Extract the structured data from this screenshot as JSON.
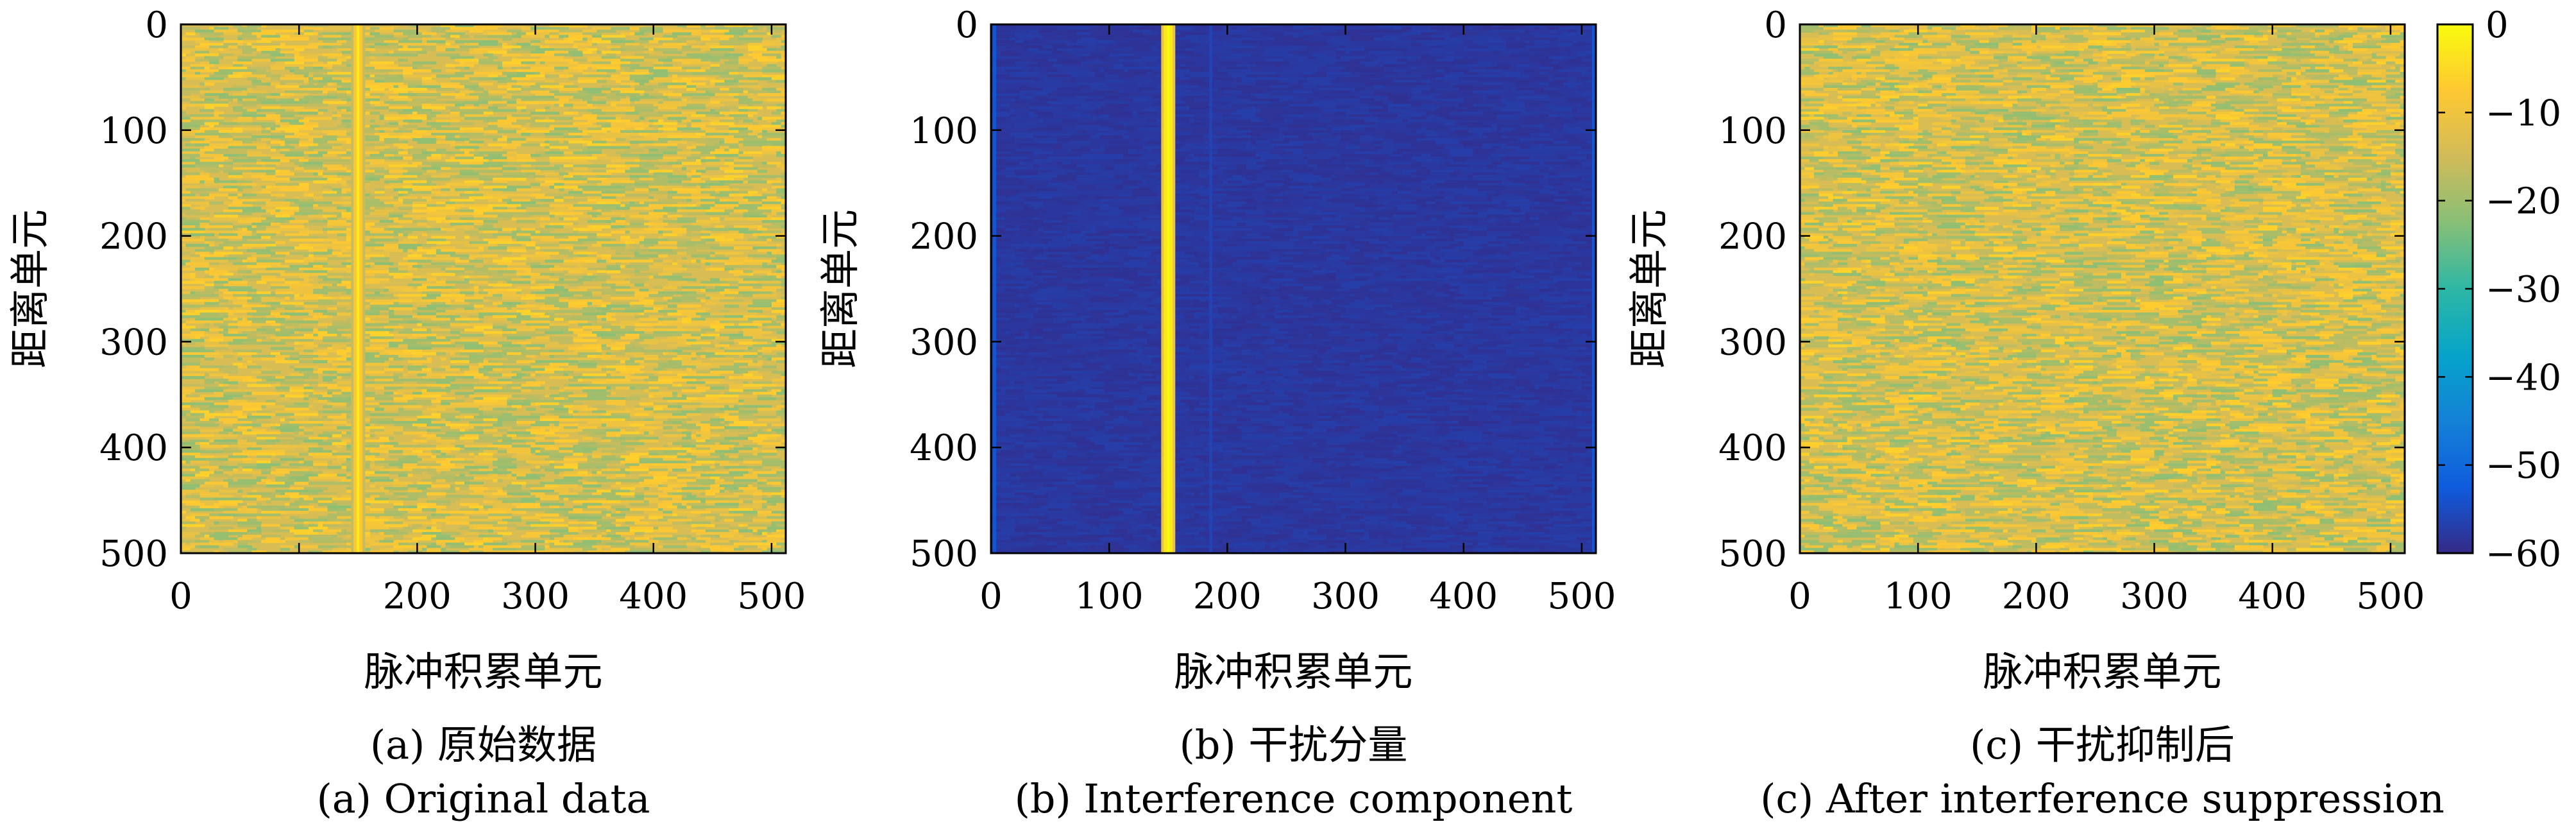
{
  "chart_data": [
    {
      "type": "heatmap",
      "caption_zh": "(a) 原始数据",
      "caption_en": "(a) Original data",
      "xlabel": "脉冲积累单元",
      "ylabel": "距离单元",
      "xlim": [
        0,
        512
      ],
      "ylim": [
        0,
        500
      ],
      "y_inverted": true,
      "xticks": [
        0,
        100,
        200,
        300,
        400,
        500
      ],
      "xtick_labels": [
        "0",
        "",
        "200",
        "300",
        "400",
        "500"
      ],
      "yticks": [
        0,
        100,
        200,
        300,
        400,
        500
      ],
      "ytick_labels": [
        "0",
        "100",
        "200",
        "300",
        "400",
        "500"
      ],
      "background_db": -14,
      "noise_db": 8,
      "interference_columns": [
        {
          "x": 150,
          "db": -8
        }
      ]
    },
    {
      "type": "heatmap",
      "caption_zh": "(b) 干扰分量",
      "caption_en": "(b) Interference component",
      "xlabel": "脉冲积累单元",
      "ylabel": "距离单元",
      "xlim": [
        0,
        512
      ],
      "ylim": [
        0,
        500
      ],
      "y_inverted": true,
      "xticks": [
        0,
        100,
        200,
        300,
        400,
        500
      ],
      "xtick_labels": [
        "0",
        "100",
        "200",
        "300",
        "400",
        "500"
      ],
      "yticks": [
        0,
        100,
        200,
        300,
        400,
        500
      ],
      "ytick_labels": [
        "0",
        "100",
        "200",
        "300",
        "400",
        "500"
      ],
      "background_db": -58,
      "noise_db": 1,
      "interference_columns": [
        {
          "x": 150,
          "db": -3
        },
        {
          "x": 186,
          "db": -48
        },
        {
          "x": 3,
          "db": -45
        },
        {
          "x": 510,
          "db": -45
        }
      ]
    },
    {
      "type": "heatmap",
      "caption_zh": "(c) 干扰抑制后",
      "caption_en": "(c) After interference suppression",
      "xlabel": "脉冲积累单元",
      "ylabel": "距离单元",
      "xlim": [
        0,
        512
      ],
      "ylim": [
        0,
        500
      ],
      "y_inverted": true,
      "xticks": [
        0,
        100,
        200,
        300,
        400,
        500
      ],
      "xtick_labels": [
        "0",
        "100",
        "200",
        "300",
        "400",
        "500"
      ],
      "yticks": [
        0,
        100,
        200,
        300,
        400,
        500
      ],
      "ytick_labels": [
        "0",
        "100",
        "200",
        "300",
        "400",
        "500"
      ],
      "background_db": -14,
      "noise_db": 8,
      "interference_columns": []
    }
  ],
  "colorbar": {
    "range": [
      -60,
      0
    ],
    "ticks": [
      0,
      -10,
      -20,
      -30,
      -40,
      -50,
      -60
    ],
    "tick_labels": [
      "0",
      "−10",
      "−20",
      "−30",
      "−40",
      "−50",
      "−60"
    ],
    "colormap": [
      "#352a87",
      "#0f5cdd",
      "#1481d6",
      "#06a4ca",
      "#2eb7a4",
      "#87bf77",
      "#d1bb59",
      "#fec832",
      "#f9fb0e"
    ]
  }
}
